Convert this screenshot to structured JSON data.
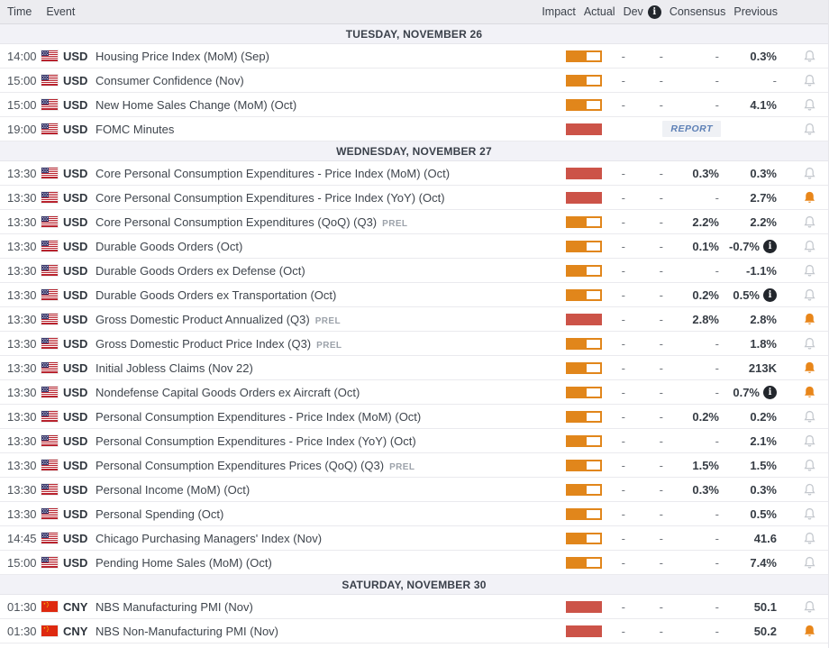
{
  "columns": {
    "time": "Time",
    "event": "Event",
    "impact": "Impact",
    "actual": "Actual",
    "dev": "Dev",
    "dev_info_icon": "i",
    "consensus": "Consensus",
    "previous": "Previous"
  },
  "colors": {
    "impact_medium": "#E1861B",
    "impact_high": "#CC5348",
    "alert_active": "#E8861A",
    "alert_inactive": "#C4C8CE",
    "report_link": "#5D80B6"
  },
  "report_label": "REPORT",
  "prel_label": "PREL",
  "sections": [
    {
      "date": "TUESDAY, NOVEMBER 26",
      "rows": [
        {
          "time": "14:00",
          "flag": "us",
          "currency": "USD",
          "event": "Housing Price Index (MoM) (Sep)",
          "badge": "",
          "impact": "medium",
          "actual": "-",
          "dev": "-",
          "consensus": "-",
          "previous": "0.3%",
          "info": false,
          "alert": false,
          "report": false
        },
        {
          "time": "15:00",
          "flag": "us",
          "currency": "USD",
          "event": "Consumer Confidence (Nov)",
          "badge": "",
          "impact": "medium",
          "actual": "-",
          "dev": "-",
          "consensus": "-",
          "previous": "-",
          "info": false,
          "alert": false,
          "report": false
        },
        {
          "time": "15:00",
          "flag": "us",
          "currency": "USD",
          "event": "New Home Sales Change (MoM) (Oct)",
          "badge": "",
          "impact": "medium",
          "actual": "-",
          "dev": "-",
          "consensus": "-",
          "previous": "4.1%",
          "info": false,
          "alert": false,
          "report": false
        },
        {
          "time": "19:00",
          "flag": "us",
          "currency": "USD",
          "event": "FOMC Minutes",
          "badge": "",
          "impact": "high",
          "actual": "",
          "dev": "",
          "consensus": "",
          "previous": "",
          "info": false,
          "alert": false,
          "report": true
        }
      ]
    },
    {
      "date": "WEDNESDAY, NOVEMBER 27",
      "rows": [
        {
          "time": "13:30",
          "flag": "us",
          "currency": "USD",
          "event": "Core Personal Consumption Expenditures - Price Index (MoM) (Oct)",
          "badge": "",
          "impact": "high",
          "actual": "-",
          "dev": "-",
          "consensus": "0.3%",
          "previous": "0.3%",
          "info": false,
          "alert": false,
          "report": false
        },
        {
          "time": "13:30",
          "flag": "us",
          "currency": "USD",
          "event": "Core Personal Consumption Expenditures - Price Index (YoY) (Oct)",
          "badge": "",
          "impact": "high",
          "actual": "-",
          "dev": "-",
          "consensus": "-",
          "previous": "2.7%",
          "info": false,
          "alert": true,
          "report": false
        },
        {
          "time": "13:30",
          "flag": "us",
          "currency": "USD",
          "event": "Core Personal Consumption Expenditures (QoQ) (Q3)",
          "badge": "PREL",
          "impact": "medium",
          "actual": "-",
          "dev": "-",
          "consensus": "2.2%",
          "previous": "2.2%",
          "info": false,
          "alert": false,
          "report": false
        },
        {
          "time": "13:30",
          "flag": "us",
          "currency": "USD",
          "event": "Durable Goods Orders (Oct)",
          "badge": "",
          "impact": "medium",
          "actual": "-",
          "dev": "-",
          "consensus": "0.1%",
          "previous": "-0.7%",
          "info": true,
          "alert": false,
          "report": false
        },
        {
          "time": "13:30",
          "flag": "us",
          "currency": "USD",
          "event": "Durable Goods Orders ex Defense (Oct)",
          "badge": "",
          "impact": "medium",
          "actual": "-",
          "dev": "-",
          "consensus": "-",
          "previous": "-1.1%",
          "info": false,
          "alert": false,
          "report": false
        },
        {
          "time": "13:30",
          "flag": "us",
          "currency": "USD",
          "event": "Durable Goods Orders ex Transportation (Oct)",
          "badge": "",
          "impact": "medium",
          "actual": "-",
          "dev": "-",
          "consensus": "0.2%",
          "previous": "0.5%",
          "info": true,
          "alert": false,
          "report": false
        },
        {
          "time": "13:30",
          "flag": "us",
          "currency": "USD",
          "event": "Gross Domestic Product Annualized (Q3)",
          "badge": "PREL",
          "impact": "high",
          "actual": "-",
          "dev": "-",
          "consensus": "2.8%",
          "previous": "2.8%",
          "info": false,
          "alert": true,
          "report": false
        },
        {
          "time": "13:30",
          "flag": "us",
          "currency": "USD",
          "event": "Gross Domestic Product Price Index (Q3)",
          "badge": "PREL",
          "impact": "medium",
          "actual": "-",
          "dev": "-",
          "consensus": "-",
          "previous": "1.8%",
          "info": false,
          "alert": false,
          "report": false
        },
        {
          "time": "13:30",
          "flag": "us",
          "currency": "USD",
          "event": "Initial Jobless Claims (Nov 22)",
          "badge": "",
          "impact": "medium",
          "actual": "-",
          "dev": "-",
          "consensus": "-",
          "previous": "213K",
          "info": false,
          "alert": true,
          "report": false
        },
        {
          "time": "13:30",
          "flag": "us",
          "currency": "USD",
          "event": "Nondefense Capital Goods Orders ex Aircraft (Oct)",
          "badge": "",
          "impact": "medium",
          "actual": "-",
          "dev": "-",
          "consensus": "-",
          "previous": "0.7%",
          "info": true,
          "alert": true,
          "report": false
        },
        {
          "time": "13:30",
          "flag": "us",
          "currency": "USD",
          "event": "Personal Consumption Expenditures - Price Index (MoM) (Oct)",
          "badge": "",
          "impact": "medium",
          "actual": "-",
          "dev": "-",
          "consensus": "0.2%",
          "previous": "0.2%",
          "info": false,
          "alert": false,
          "report": false
        },
        {
          "time": "13:30",
          "flag": "us",
          "currency": "USD",
          "event": "Personal Consumption Expenditures - Price Index (YoY) (Oct)",
          "badge": "",
          "impact": "medium",
          "actual": "-",
          "dev": "-",
          "consensus": "-",
          "previous": "2.1%",
          "info": false,
          "alert": false,
          "report": false
        },
        {
          "time": "13:30",
          "flag": "us",
          "currency": "USD",
          "event": "Personal Consumption Expenditures Prices (QoQ) (Q3)",
          "badge": "PREL",
          "impact": "medium",
          "actual": "-",
          "dev": "-",
          "consensus": "1.5%",
          "previous": "1.5%",
          "info": false,
          "alert": false,
          "report": false
        },
        {
          "time": "13:30",
          "flag": "us",
          "currency": "USD",
          "event": "Personal Income (MoM) (Oct)",
          "badge": "",
          "impact": "medium",
          "actual": "-",
          "dev": "-",
          "consensus": "0.3%",
          "previous": "0.3%",
          "info": false,
          "alert": false,
          "report": false
        },
        {
          "time": "13:30",
          "flag": "us",
          "currency": "USD",
          "event": "Personal Spending (Oct)",
          "badge": "",
          "impact": "medium",
          "actual": "-",
          "dev": "-",
          "consensus": "-",
          "previous": "0.5%",
          "info": false,
          "alert": false,
          "report": false
        },
        {
          "time": "14:45",
          "flag": "us",
          "currency": "USD",
          "event": "Chicago Purchasing Managers' Index (Nov)",
          "badge": "",
          "impact": "medium",
          "actual": "-",
          "dev": "-",
          "consensus": "-",
          "previous": "41.6",
          "info": false,
          "alert": false,
          "report": false
        },
        {
          "time": "15:00",
          "flag": "us",
          "currency": "USD",
          "event": "Pending Home Sales (MoM) (Oct)",
          "badge": "",
          "impact": "medium",
          "actual": "-",
          "dev": "-",
          "consensus": "-",
          "previous": "7.4%",
          "info": false,
          "alert": false,
          "report": false
        }
      ]
    },
    {
      "date": "SATURDAY, NOVEMBER 30",
      "rows": [
        {
          "time": "01:30",
          "flag": "cn",
          "currency": "CNY",
          "event": "NBS Manufacturing PMI (Nov)",
          "badge": "",
          "impact": "high",
          "actual": "-",
          "dev": "-",
          "consensus": "-",
          "previous": "50.1",
          "info": false,
          "alert": false,
          "report": false
        },
        {
          "time": "01:30",
          "flag": "cn",
          "currency": "CNY",
          "event": "NBS Non-Manufacturing PMI (Nov)",
          "badge": "",
          "impact": "high",
          "actual": "-",
          "dev": "-",
          "consensus": "-",
          "previous": "50.2",
          "info": false,
          "alert": true,
          "report": false
        }
      ]
    }
  ]
}
